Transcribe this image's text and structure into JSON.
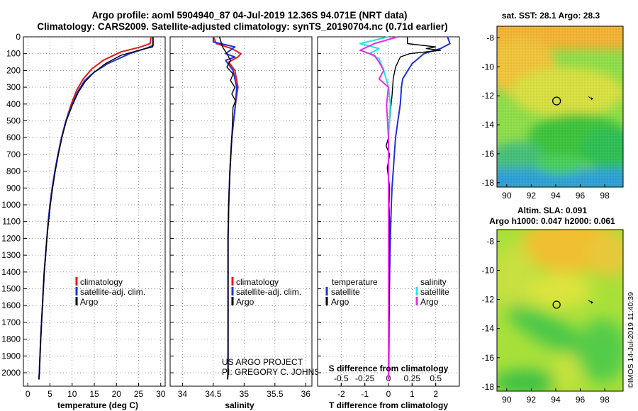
{
  "title_lines": [
    "Argo profile: aoml 5904940_87 04-Jul-2019 12.36S 94.071E (NRT data)",
    "Climatology: CARS2009. Satellite-adjusted climatology: synTS_20190704.nc (0.71d earlier)"
  ],
  "colors": {
    "climatology": "#e41a1c",
    "satellite": "#1f32d9",
    "argo": "#000000",
    "sal_satellite": "#1ee6e6",
    "sal_argo": "#e62ee6"
  },
  "attribution": [
    "US ARGO PROJECT",
    "PI: GREGORY C. JOHNSON"
  ],
  "side_stamp": "©IMOS 14-Jul-2019 11:40:39",
  "chart_data": [
    {
      "id": "temperature",
      "type": "line",
      "xlabel": "temperature (deg C)",
      "ylabel": "",
      "xlim": [
        -1,
        31
      ],
      "ylim": [
        2080,
        0
      ],
      "xticks": [
        0,
        5,
        10,
        15,
        20,
        25,
        30
      ],
      "yticks": [
        0,
        100,
        200,
        300,
        400,
        500,
        600,
        700,
        800,
        900,
        1000,
        1100,
        1200,
        1300,
        1400,
        1500,
        1600,
        1700,
        1800,
        1900,
        2000
      ],
      "grid": true,
      "legend": [
        "climatology",
        "satellite-adj. clim.",
        "Argo"
      ],
      "series": [
        {
          "name": "climatology",
          "color_key": "climatology",
          "points": [
            [
              27.8,
              0
            ],
            [
              27.6,
              40
            ],
            [
              25.5,
              60
            ],
            [
              21,
              90
            ],
            [
              17,
              140
            ],
            [
              14.5,
              190
            ],
            [
              12.5,
              250
            ],
            [
              11,
              320
            ],
            [
              9.8,
              400
            ],
            [
              8.6,
              500
            ],
            [
              7.6,
              600
            ],
            [
              6.8,
              700
            ],
            [
              6.1,
              800
            ],
            [
              5.5,
              900
            ],
            [
              5.0,
              1000
            ],
            [
              4.6,
              1100
            ],
            [
              4.3,
              1200
            ],
            [
              4.0,
              1300
            ],
            [
              3.7,
              1400
            ],
            [
              3.5,
              1500
            ],
            [
              3.3,
              1600
            ],
            [
              3.1,
              1700
            ],
            [
              2.9,
              1800
            ],
            [
              2.75,
              1900
            ],
            [
              2.6,
              2000
            ],
            [
              2.5,
              2040
            ]
          ]
        },
        {
          "name": "satellite-adj. clim.",
          "color_key": "satellite",
          "points": [
            [
              28.3,
              0
            ],
            [
              28.3,
              50
            ],
            [
              27,
              65
            ],
            [
              23,
              100
            ],
            [
              18,
              160
            ],
            [
              15,
              210
            ],
            [
              12.8,
              260
            ],
            [
              11.2,
              330
            ],
            [
              9.9,
              410
            ],
            [
              8.6,
              500
            ],
            [
              7.6,
              600
            ],
            [
              6.8,
              700
            ],
            [
              6.1,
              800
            ],
            [
              5.5,
              900
            ],
            [
              5.0,
              1000
            ],
            [
              4.6,
              1100
            ],
            [
              4.3,
              1200
            ],
            [
              4.0,
              1300
            ],
            [
              3.7,
              1400
            ],
            [
              3.5,
              1500
            ],
            [
              3.3,
              1600
            ],
            [
              3.1,
              1700
            ],
            [
              2.9,
              1800
            ],
            [
              2.75,
              1900
            ],
            [
              2.6,
              2000
            ],
            [
              2.5,
              2040
            ]
          ]
        },
        {
          "name": "Argo",
          "color_key": "argo",
          "points": [
            [
              28.2,
              0
            ],
            [
              28.2,
              60
            ],
            [
              25,
              80
            ],
            [
              21,
              110
            ],
            [
              17.5,
              160
            ],
            [
              15,
              210
            ],
            [
              13,
              265
            ],
            [
              11.4,
              330
            ],
            [
              10,
              410
            ],
            [
              8.7,
              500
            ],
            [
              7.7,
              600
            ],
            [
              6.9,
              700
            ],
            [
              6.2,
              800
            ],
            [
              5.6,
              900
            ],
            [
              5.1,
              1000
            ],
            [
              4.7,
              1100
            ],
            [
              4.3,
              1200
            ],
            [
              4.0,
              1300
            ],
            [
              3.7,
              1400
            ],
            [
              3.5,
              1500
            ],
            [
              3.3,
              1600
            ],
            [
              3.1,
              1700
            ],
            [
              2.9,
              1800
            ],
            [
              2.75,
              1900
            ],
            [
              2.6,
              2000
            ],
            [
              2.5,
              2040
            ]
          ]
        }
      ]
    },
    {
      "id": "salinity",
      "type": "line",
      "xlabel": "salinity",
      "ylabel": "",
      "xlim": [
        33.8,
        36.1
      ],
      "ylim": [
        2080,
        0
      ],
      "xticks": [
        34,
        34.5,
        35,
        35.5,
        36
      ],
      "xtick_labels": [
        "34",
        "34.5",
        "35",
        "35.5",
        "36"
      ],
      "grid": true,
      "legend": [
        "climatology",
        "satellite-adj. clim.",
        "Argo"
      ],
      "series": [
        {
          "name": "climatology",
          "color_key": "climatology",
          "points": [
            [
              34.5,
              0
            ],
            [
              34.55,
              40
            ],
            [
              34.8,
              70
            ],
            [
              34.95,
              100
            ],
            [
              34.9,
              120
            ],
            [
              34.75,
              150
            ],
            [
              34.85,
              200
            ],
            [
              34.9,
              300
            ],
            [
              34.86,
              400
            ],
            [
              34.8,
              600
            ],
            [
              34.77,
              800
            ],
            [
              34.75,
              1000
            ],
            [
              34.74,
              1200
            ],
            [
              34.74,
              1500
            ],
            [
              34.74,
              1800
            ],
            [
              34.74,
              2000
            ],
            [
              34.73,
              2040
            ]
          ]
        },
        {
          "name": "satellite-adj. clim.",
          "color_key": "satellite",
          "points": [
            [
              34.5,
              0
            ],
            [
              34.5,
              30
            ],
            [
              34.85,
              60
            ],
            [
              34.7,
              100
            ],
            [
              34.85,
              120
            ],
            [
              34.7,
              140
            ],
            [
              34.82,
              200
            ],
            [
              34.88,
              300
            ],
            [
              34.86,
              400
            ],
            [
              34.8,
              600
            ],
            [
              34.77,
              800
            ],
            [
              34.75,
              1000
            ],
            [
              34.74,
              1200
            ],
            [
              34.74,
              1500
            ],
            [
              34.74,
              1800
            ],
            [
              34.74,
              2000
            ],
            [
              34.73,
              2040
            ]
          ]
        },
        {
          "name": "Argo",
          "color_key": "argo",
          "points": [
            [
              34.6,
              0
            ],
            [
              34.65,
              60
            ],
            [
              34.72,
              100
            ],
            [
              34.78,
              140
            ],
            [
              34.72,
              180
            ],
            [
              34.82,
              220
            ],
            [
              34.78,
              260
            ],
            [
              34.85,
              300
            ],
            [
              34.8,
              340
            ],
            [
              34.86,
              380
            ],
            [
              34.82,
              420
            ],
            [
              34.8,
              600
            ],
            [
              34.77,
              800
            ],
            [
              34.75,
              1000
            ],
            [
              34.74,
              1200
            ],
            [
              34.74,
              1500
            ],
            [
              34.74,
              1800
            ],
            [
              34.74,
              2000
            ],
            [
              34.73,
              2040
            ]
          ]
        }
      ]
    },
    {
      "id": "differences",
      "type": "line",
      "xlabel": "T difference from climatology",
      "xlabel_top": "S difference from climatology",
      "xlim": [
        -3,
        3
      ],
      "ylim": [
        2080,
        0
      ],
      "xticks": [
        -2,
        -1,
        0,
        1,
        2
      ],
      "xtick_labels": [
        "-2",
        "-1",
        "0",
        "1",
        "2"
      ],
      "sticks": [
        -0.5,
        -0.25,
        0,
        0.25,
        0.5
      ],
      "stick_labels": [
        "-0.5",
        "-0.25",
        "0",
        "0.25",
        "0.5"
      ],
      "s_scale": 0.25,
      "grid": true,
      "legend_left_title": "temperature",
      "legend_left": [
        "satellite",
        "Argo"
      ],
      "legend_right_title": "salinity",
      "legend_right": [
        "satellite",
        "Argo"
      ],
      "series": [
        {
          "name": "T satellite",
          "color_key": "satellite",
          "points": [
            [
              2.5,
              0
            ],
            [
              2.6,
              40
            ],
            [
              2.2,
              70
            ],
            [
              1.5,
              100
            ],
            [
              1.0,
              160
            ],
            [
              0.6,
              250
            ],
            [
              0.55,
              300
            ],
            [
              0.5,
              400
            ],
            [
              0.4,
              500
            ],
            [
              0.3,
              600
            ],
            [
              0.25,
              700
            ],
            [
              0.2,
              800
            ],
            [
              0.15,
              900
            ],
            [
              0.12,
              1000
            ],
            [
              0.08,
              1200
            ],
            [
              0.05,
              1400
            ],
            [
              0.03,
              1600
            ],
            [
              0.02,
              1800
            ],
            [
              0.01,
              2000
            ],
            [
              0,
              2040
            ]
          ]
        },
        {
          "name": "T Argo",
          "color_key": "argo",
          "points": [
            [
              0.8,
              0
            ],
            [
              0.8,
              40
            ],
            [
              2.0,
              60
            ],
            [
              1.6,
              70
            ],
            [
              2.2,
              80
            ],
            [
              0.9,
              100
            ],
            [
              0.5,
              120
            ],
            [
              0.3,
              180
            ],
            [
              0.2,
              250
            ],
            [
              0.15,
              350
            ],
            [
              0.1,
              420
            ],
            [
              0.05,
              500
            ],
            [
              0.0,
              600
            ],
            [
              -0.1,
              650
            ],
            [
              0.05,
              700
            ],
            [
              -0.05,
              780
            ],
            [
              0.05,
              900
            ],
            [
              0.02,
              1000
            ],
            [
              0.05,
              1100
            ],
            [
              0.02,
              1300
            ],
            [
              0.03,
              1500
            ],
            [
              0.01,
              1700
            ],
            [
              0.0,
              1900
            ],
            [
              0,
              2040
            ]
          ]
        },
        {
          "name": "S satellite",
          "color_key": "sal_satellite",
          "points": [
            [
              0,
              0
            ],
            [
              -0.3,
              40
            ],
            [
              -0.1,
              70
            ],
            [
              -0.2,
              100
            ],
            [
              -0.1,
              130
            ],
            [
              -0.05,
              200
            ],
            [
              0.0,
              300
            ],
            [
              0.02,
              400
            ],
            [
              0.0,
              600
            ],
            [
              0.0,
              800
            ],
            [
              0.0,
              1000
            ],
            [
              0.0,
              1200
            ],
            [
              0.0,
              1500
            ],
            [
              0.0,
              1800
            ],
            [
              0.0,
              2040
            ]
          ]
        },
        {
          "name": "S Argo",
          "color_key": "sal_argo",
          "points": [
            [
              0.1,
              0
            ],
            [
              -0.15,
              40
            ],
            [
              -0.3,
              80
            ],
            [
              -0.15,
              110
            ],
            [
              -0.1,
              150
            ],
            [
              -0.05,
              200
            ],
            [
              -0.1,
              250
            ],
            [
              0.0,
              300
            ],
            [
              -0.02,
              400
            ],
            [
              0.0,
              600
            ],
            [
              0.0,
              800
            ],
            [
              0.0,
              1000
            ],
            [
              0.0,
              1200
            ],
            [
              0.0,
              1500
            ],
            [
              0.0,
              1800
            ],
            [
              0.0,
              2040
            ]
          ]
        }
      ]
    },
    {
      "id": "sst_map",
      "type": "heatmap",
      "title": "sat. SST: 28.1 Argo: 28.3",
      "xlim": [
        89.2,
        99.5
      ],
      "ylim": [
        -18.3,
        -7.2
      ],
      "xticks": [
        90,
        92,
        94,
        96,
        98
      ],
      "yticks": [
        -8,
        -10,
        -12,
        -14,
        -16,
        -18
      ],
      "argo_position": [
        94.07,
        -12.36
      ],
      "track_mark": [
        96.9,
        -12.2
      ]
    },
    {
      "id": "sla_map",
      "type": "heatmap",
      "title_lines": [
        "Altim. SLA: 0.091",
        "Argo h1000: 0.047 h2000: 0.061"
      ],
      "xlim": [
        89.2,
        99.5
      ],
      "ylim": [
        -18.3,
        -7.2
      ],
      "xticks": [
        90,
        92,
        94,
        96,
        98
      ],
      "yticks": [
        -8,
        -10,
        -12,
        -14,
        -16,
        -18
      ],
      "argo_position": [
        94.07,
        -12.36
      ],
      "track_mark": [
        96.9,
        -12.2
      ]
    }
  ]
}
